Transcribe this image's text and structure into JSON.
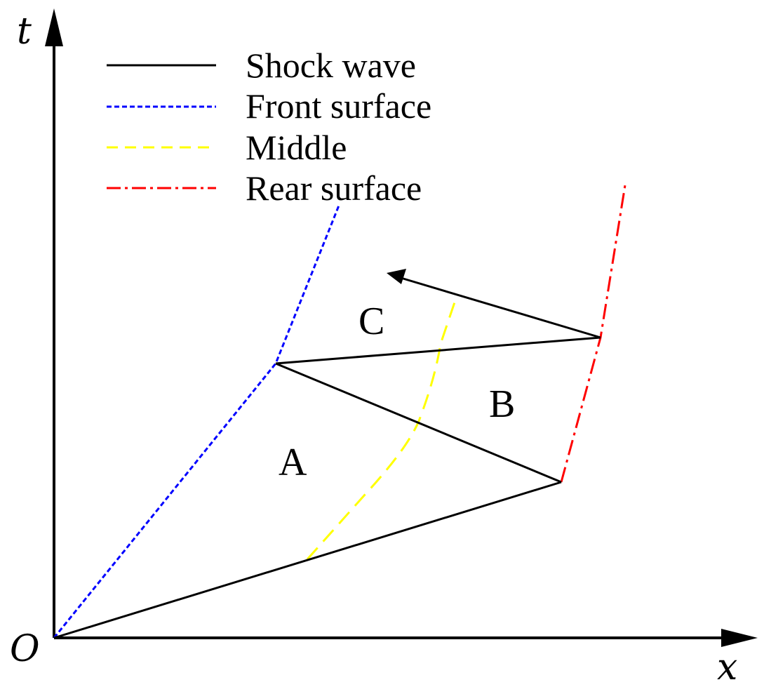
{
  "axes": {
    "x_label": "x",
    "t_label": "t",
    "origin_label": "O"
  },
  "legend": {
    "items": [
      {
        "label": "Shock wave",
        "color": "#000000",
        "style": "solid"
      },
      {
        "label": "Front surface",
        "color": "#0000ff",
        "style": "dotted"
      },
      {
        "label": "Middle",
        "color": "#ffff00",
        "style": "dashed"
      },
      {
        "label": "Rear surface",
        "color": "#ff0000",
        "style": "dash-dot"
      }
    ]
  },
  "regions": {
    "a": "A",
    "b": "B",
    "c": "C"
  }
}
